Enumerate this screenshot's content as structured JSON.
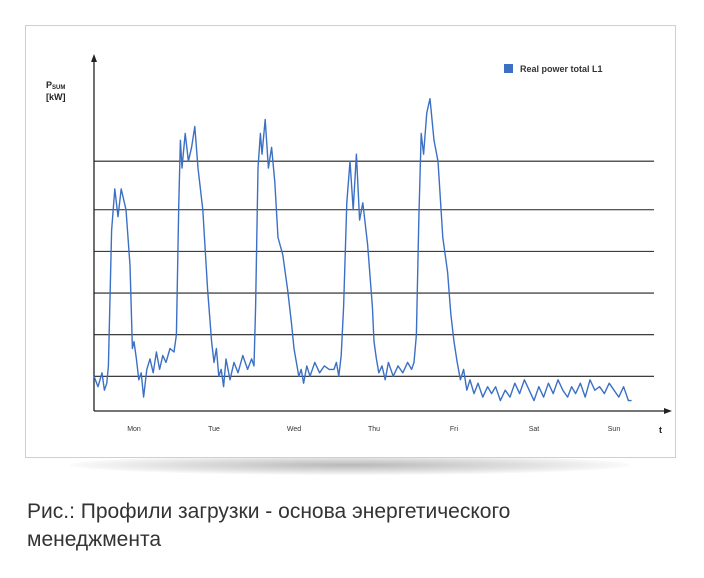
{
  "chart_data": {
    "type": "line",
    "title": "",
    "ylabel": {
      "main": "P",
      "subscript": "SUM",
      "unit": "[kW]"
    },
    "xlabel": "t",
    "categories": [
      "Mon",
      "Tue",
      "Wed",
      "Thu",
      "Fri",
      "Sat",
      "Sun"
    ],
    "ylim": [
      0,
      100
    ],
    "gridlines": [
      10,
      22,
      34,
      46,
      58,
      72
    ],
    "grid": true,
    "legend_position": "top-right",
    "series_color": "#3b70c5",
    "series": [
      {
        "name": "Real power total L1",
        "x": [
          0,
          0.05,
          0.1,
          0.13,
          0.16,
          0.18,
          0.22,
          0.26,
          0.3,
          0.34,
          0.4,
          0.45,
          0.48,
          0.5,
          0.53,
          0.56,
          0.59,
          0.62,
          0.64,
          0.66,
          0.7,
          0.74,
          0.78,
          0.82,
          0.86,
          0.9,
          0.95,
          1.0,
          1.03,
          1.06,
          1.08,
          1.1,
          1.14,
          1.18,
          1.22,
          1.26,
          1.3,
          1.36,
          1.42,
          1.47,
          1.5,
          1.53,
          1.56,
          1.59,
          1.62,
          1.65,
          1.7,
          1.75,
          1.8,
          1.86,
          1.92,
          1.97,
          2.0,
          2.02,
          2.05,
          2.08,
          2.1,
          2.14,
          2.18,
          2.22,
          2.26,
          2.3,
          2.36,
          2.42,
          2.47,
          2.5,
          2.53,
          2.56,
          2.59,
          2.62,
          2.66,
          2.7,
          2.76,
          2.82,
          2.88,
          2.94,
          3.0,
          3.03,
          3.06,
          3.09,
          3.12,
          3.16,
          3.2,
          3.24,
          3.28,
          3.32,
          3.36,
          3.42,
          3.48,
          3.5,
          3.53,
          3.56,
          3.6,
          3.64,
          3.68,
          3.74,
          3.8,
          3.86,
          3.92,
          3.97,
          4.0,
          4.03,
          4.06,
          4.09,
          4.12,
          4.16,
          4.2,
          4.25,
          4.3,
          4.36,
          4.42,
          4.46,
          4.5,
          4.54,
          4.58,
          4.62,
          4.66,
          4.7,
          4.75,
          4.8,
          4.86,
          4.92,
          4.97,
          5.02,
          5.08,
          5.14,
          5.2,
          5.26,
          5.32,
          5.38,
          5.44,
          5.5,
          5.56,
          5.62,
          5.68,
          5.74,
          5.8,
          5.86,
          5.92,
          5.97,
          6.02,
          6.08,
          6.14,
          6.2,
          6.26,
          6.32,
          6.38,
          6.44,
          6.5,
          6.56,
          6.62,
          6.68,
          6.72
        ],
        "values": [
          10,
          7,
          11,
          6,
          8,
          13,
          52,
          64,
          56,
          64,
          58,
          42,
          18,
          20,
          15,
          9,
          11,
          4,
          8,
          12,
          15,
          11,
          17,
          12,
          16,
          14,
          18,
          17,
          22,
          60,
          78,
          70,
          80,
          72,
          76,
          82,
          70,
          58,
          35,
          20,
          14,
          18,
          10,
          12,
          7,
          15,
          9,
          14,
          11,
          16,
          12,
          15,
          13,
          30,
          70,
          80,
          74,
          84,
          70,
          76,
          66,
          50,
          45,
          35,
          25,
          18,
          14,
          10,
          12,
          8,
          13,
          10,
          14,
          11,
          13,
          12,
          12,
          14,
          10,
          16,
          30,
          60,
          72,
          58,
          74,
          55,
          60,
          48,
          30,
          20,
          15,
          11,
          13,
          9,
          14,
          10,
          13,
          11,
          14,
          12,
          14,
          22,
          55,
          80,
          74,
          86,
          90,
          78,
          72,
          50,
          40,
          28,
          20,
          14,
          9,
          12,
          6,
          9,
          5,
          8,
          4,
          7,
          5,
          7,
          3,
          6,
          4,
          8,
          5,
          9,
          6,
          3,
          7,
          4,
          8,
          5,
          9,
          6,
          4,
          7,
          5,
          8,
          4,
          9,
          6,
          7,
          5,
          8,
          6,
          4,
          7,
          3,
          3
        ]
      }
    ]
  },
  "caption": {
    "line1": "Рис.: Профили загрузки - основа энергетического",
    "line2": "менеджмента"
  }
}
